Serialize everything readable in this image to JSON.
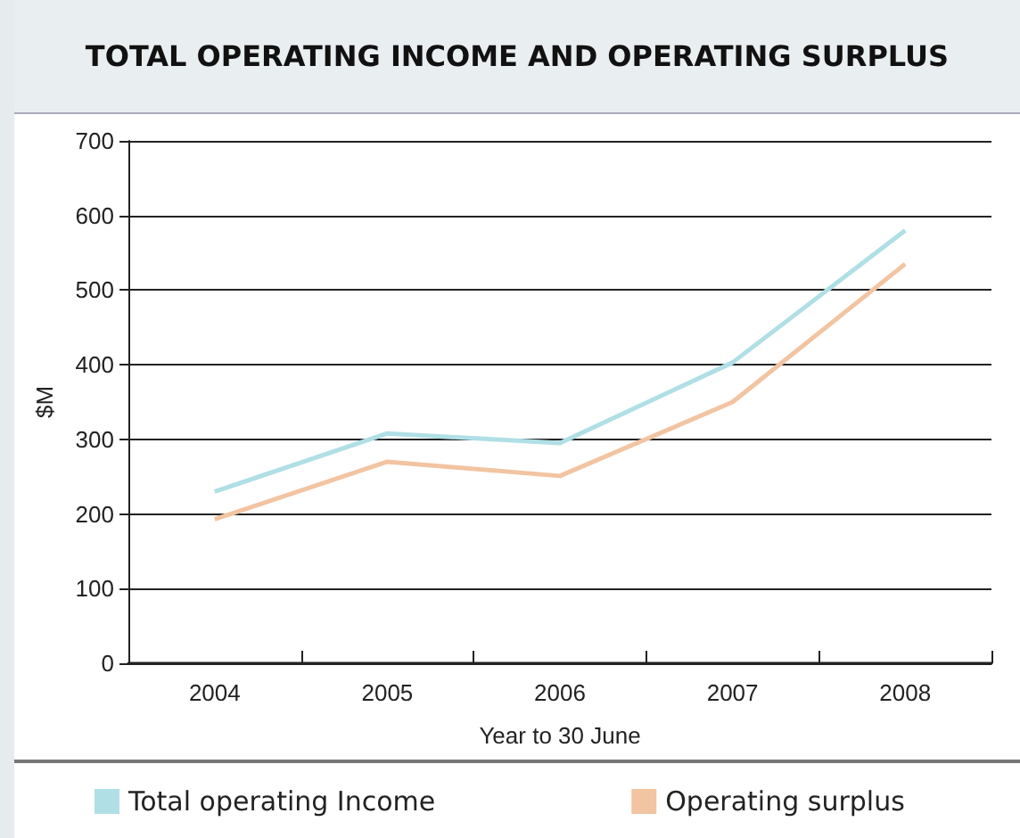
{
  "chart_data": {
    "type": "line",
    "title": "TOTAL OPERATING INCOME AND OPERATING SURPLUS",
    "xlabel": "Year to 30 June",
    "ylabel": "$M",
    "categories": [
      "2004",
      "2005",
      "2006",
      "2007",
      "2008"
    ],
    "series": [
      {
        "name": "Total operating Income",
        "color": "#b0dfe5",
        "values": [
          230,
          308,
          295,
          403,
          580
        ]
      },
      {
        "name": "Operating surplus",
        "color": "#f2c4a2",
        "values": [
          193,
          270,
          251,
          350,
          535
        ]
      }
    ],
    "ylim": [
      0,
      700
    ],
    "yticks": [
      0,
      100,
      200,
      300,
      400,
      500,
      600,
      700
    ],
    "grid": "y",
    "legend": "bottom",
    "marker": "none",
    "line_style": "solid"
  }
}
